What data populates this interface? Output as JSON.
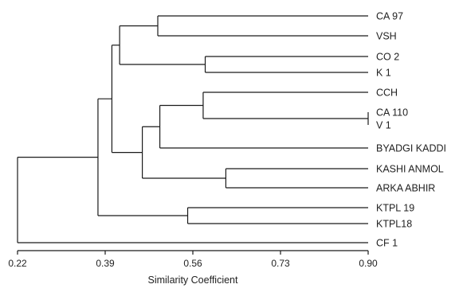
{
  "dendrogram": {
    "axis_title": "Similarity Coefficient",
    "ticks": [
      "0.22",
      "0.39",
      "0.56",
      "0.73",
      "0.90"
    ],
    "leaves": [
      "CA 97",
      "VSH",
      "CO 2",
      "K 1",
      "CCH",
      "CA 110",
      "V 1",
      "BYADGI KADDI",
      "KASHI ANMOL",
      "ARKA ABHIR",
      "KTPL 19",
      "KTPL18",
      "CF 1"
    ],
    "merges": [
      {
        "left": "L5",
        "right": "L6",
        "similarity": 0.9
      },
      {
        "left": "L0",
        "right": "L1",
        "similarity": 0.492
      },
      {
        "left": "L2",
        "right": "L3",
        "similarity": 0.584
      },
      {
        "left": "L4",
        "right": "N0",
        "similarity": 0.58
      },
      {
        "left": "L8",
        "right": "L9",
        "similarity": 0.624
      },
      {
        "left": "L10",
        "right": "L11",
        "similarity": 0.55
      },
      {
        "left": "N1",
        "right": "N2",
        "similarity": 0.418
      },
      {
        "left": "N3",
        "right": "L7",
        "similarity": 0.496
      },
      {
        "left": "N7",
        "right": "N4",
        "similarity": 0.462
      },
      {
        "left": "N6",
        "right": "N8",
        "similarity": 0.403
      },
      {
        "left": "N9",
        "right": "N5",
        "similarity": 0.376
      },
      {
        "left": "N10",
        "right": "L12",
        "similarity": 0.22
      }
    ]
  }
}
